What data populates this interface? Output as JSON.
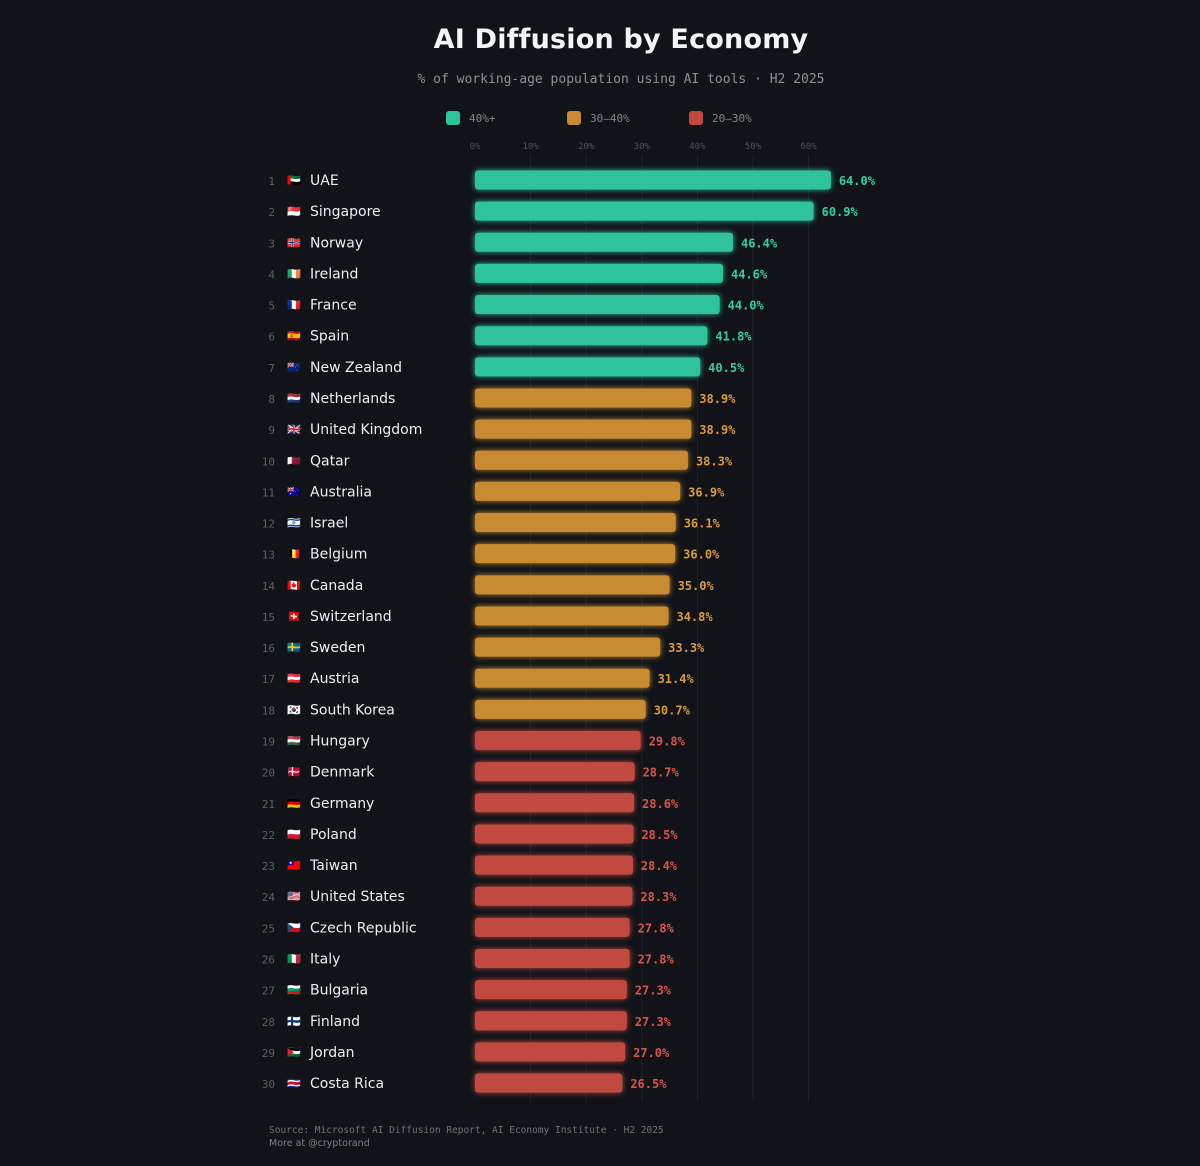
{
  "chart_data": {
    "type": "bar",
    "orientation": "horizontal",
    "title": "AI Diffusion by Economy",
    "subtitle": "% of working-age population using AI tools · H2 2025",
    "xlim": [
      0,
      64
    ],
    "x_ticks": [
      0,
      10,
      20,
      30,
      40,
      50,
      60
    ],
    "x_tick_labels": [
      "0%",
      "10%",
      "20%",
      "30%",
      "40%",
      "50%",
      "60%"
    ],
    "legend": [
      {
        "label": "40%+",
        "color": "#2ec39a",
        "min": 40
      },
      {
        "label": "30–40%",
        "color": "#c98b30",
        "min": 30
      },
      {
        "label": "20–30%",
        "color": "#c2483f",
        "min": 20
      }
    ],
    "text_colors": {
      "40%+": "#34cfa2",
      "30–40%": "#d99a3a",
      "20–30%": "#d9544a"
    },
    "rows": [
      {
        "rank": "1",
        "flag": "🇦🇪",
        "country": "UAE",
        "value": 64.0,
        "label": "64.0%"
      },
      {
        "rank": "2",
        "flag": "🇸🇬",
        "country": "Singapore",
        "value": 60.9,
        "label": "60.9%"
      },
      {
        "rank": "3",
        "flag": "🇳🇴",
        "country": "Norway",
        "value": 46.4,
        "label": "46.4%"
      },
      {
        "rank": "4",
        "flag": "🇮🇪",
        "country": "Ireland",
        "value": 44.6,
        "label": "44.6%"
      },
      {
        "rank": "5",
        "flag": "🇫🇷",
        "country": "France",
        "value": 44.0,
        "label": "44.0%"
      },
      {
        "rank": "6",
        "flag": "🇪🇸",
        "country": "Spain",
        "value": 41.8,
        "label": "41.8%"
      },
      {
        "rank": "7",
        "flag": "🇳🇿",
        "country": "New Zealand",
        "value": 40.5,
        "label": "40.5%"
      },
      {
        "rank": "8",
        "flag": "🇳🇱",
        "country": "Netherlands",
        "value": 38.9,
        "label": "38.9%"
      },
      {
        "rank": "9",
        "flag": "🇬🇧",
        "country": "United Kingdom",
        "value": 38.9,
        "label": "38.9%"
      },
      {
        "rank": "10",
        "flag": "🇶🇦",
        "country": "Qatar",
        "value": 38.3,
        "label": "38.3%"
      },
      {
        "rank": "11",
        "flag": "🇦🇺",
        "country": "Australia",
        "value": 36.9,
        "label": "36.9%"
      },
      {
        "rank": "12",
        "flag": "🇮🇱",
        "country": "Israel",
        "value": 36.1,
        "label": "36.1%"
      },
      {
        "rank": "13",
        "flag": "🇧🇪",
        "country": "Belgium",
        "value": 36.0,
        "label": "36.0%"
      },
      {
        "rank": "14",
        "flag": "🇨🇦",
        "country": "Canada",
        "value": 35.0,
        "label": "35.0%"
      },
      {
        "rank": "15",
        "flag": "🇨🇭",
        "country": "Switzerland",
        "value": 34.8,
        "label": "34.8%"
      },
      {
        "rank": "16",
        "flag": "🇸🇪",
        "country": "Sweden",
        "value": 33.3,
        "label": "33.3%"
      },
      {
        "rank": "17",
        "flag": "🇦🇹",
        "country": "Austria",
        "value": 31.4,
        "label": "31.4%"
      },
      {
        "rank": "18",
        "flag": "🇰🇷",
        "country": "South Korea",
        "value": 30.7,
        "label": "30.7%"
      },
      {
        "rank": "19",
        "flag": "🇭🇺",
        "country": "Hungary",
        "value": 29.8,
        "label": "29.8%"
      },
      {
        "rank": "20",
        "flag": "🇩🇰",
        "country": "Denmark",
        "value": 28.7,
        "label": "28.7%"
      },
      {
        "rank": "21",
        "flag": "🇩🇪",
        "country": "Germany",
        "value": 28.6,
        "label": "28.6%"
      },
      {
        "rank": "22",
        "flag": "🇵🇱",
        "country": "Poland",
        "value": 28.5,
        "label": "28.5%"
      },
      {
        "rank": "23",
        "flag": "🇹🇼",
        "country": "Taiwan",
        "value": 28.4,
        "label": "28.4%"
      },
      {
        "rank": "24",
        "flag": "🇺🇸",
        "country": "United States",
        "value": 28.3,
        "label": "28.3%"
      },
      {
        "rank": "25",
        "flag": "🇨🇿",
        "country": "Czech Republic",
        "value": 27.8,
        "label": "27.8%"
      },
      {
        "rank": "26",
        "flag": "🇮🇹",
        "country": "Italy",
        "value": 27.8,
        "label": "27.8%"
      },
      {
        "rank": "27",
        "flag": "🇧🇬",
        "country": "Bulgaria",
        "value": 27.3,
        "label": "27.3%"
      },
      {
        "rank": "28",
        "flag": "🇫🇮",
        "country": "Finland",
        "value": 27.3,
        "label": "27.3%"
      },
      {
        "rank": "29",
        "flag": "🇯🇴",
        "country": "Jordan",
        "value": 27.0,
        "label": "27.0%"
      },
      {
        "rank": "30",
        "flag": "🇨🇷",
        "country": "Costa Rica",
        "value": 26.5,
        "label": "26.5%"
      }
    ]
  },
  "footer": {
    "source": "Source: Microsoft AI Diffusion Report, AI Economy Institute · H2 2025",
    "credit": "More at @cryptorand"
  }
}
